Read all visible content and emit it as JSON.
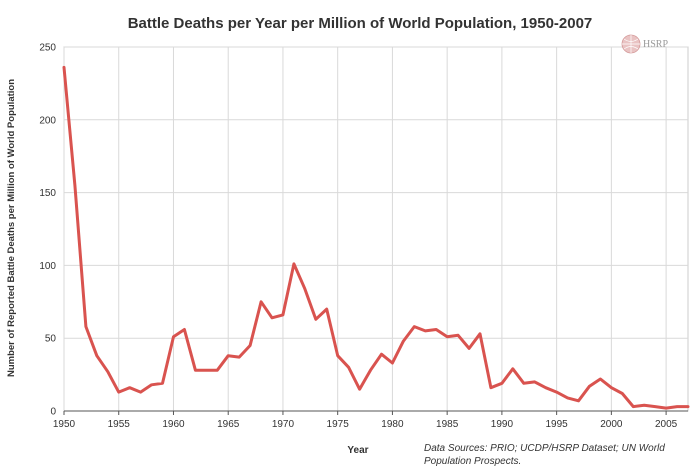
{
  "chart_data": {
    "type": "line",
    "title": "Battle Deaths per Year per Million of World Population, 1950-2007",
    "xlabel": "Year",
    "ylabel": "Number of Reported Battle Deaths per Million of World Population",
    "xlim": [
      1950,
      2007
    ],
    "ylim": [
      0,
      250
    ],
    "x_ticks": [
      1950,
      1955,
      1960,
      1965,
      1970,
      1975,
      1980,
      1985,
      1990,
      1995,
      2000,
      2005
    ],
    "y_ticks": [
      0,
      50,
      100,
      150,
      200,
      250
    ],
    "grid": true,
    "line_color": "#d9534f",
    "series": [
      {
        "x": [
          1950,
          1951,
          1952,
          1953,
          1954,
          1955,
          1956,
          1957,
          1958,
          1959,
          1960,
          1961,
          1962,
          1963,
          1964,
          1965,
          1966,
          1967,
          1968,
          1969,
          1970,
          1971,
          1972,
          1973,
          1974,
          1975,
          1976,
          1977,
          1978,
          1979,
          1980,
          1981,
          1982,
          1983,
          1984,
          1985,
          1986,
          1987,
          1988,
          1989,
          1990,
          1991,
          1992,
          1993,
          1994,
          1995,
          1996,
          1997,
          1998,
          1999,
          2000,
          2001,
          2002,
          2003,
          2004,
          2005,
          2006,
          2007
        ],
        "values": [
          236,
          155,
          58,
          38,
          27,
          13,
          16,
          13,
          18,
          19,
          51,
          56,
          28,
          28,
          28,
          38,
          37,
          45,
          75,
          64,
          66,
          101,
          84,
          63,
          70,
          38,
          30,
          15,
          28,
          39,
          33,
          48,
          58,
          55,
          56,
          51,
          52,
          43,
          53,
          16,
          19,
          29,
          19,
          20,
          16,
          13,
          9,
          7,
          17,
          22,
          16,
          12,
          3,
          4,
          3,
          2,
          3,
          3
        ]
      }
    ],
    "source_lines": [
      "Data Sources: PRIO; UCDP/HSRP Dataset; UN World",
      "Population Prospects."
    ],
    "logo_text": "HSRP"
  }
}
